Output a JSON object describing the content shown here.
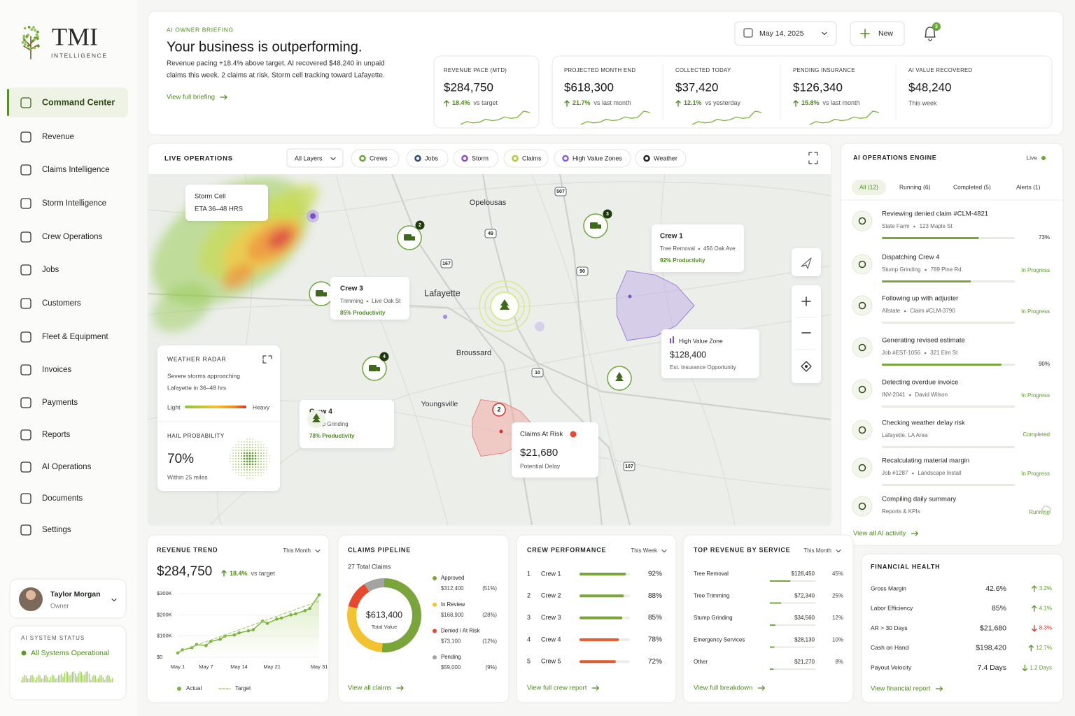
{
  "sidebar": {
    "logo": "TMI",
    "logo_sub": "INTELLIGENCE",
    "nav": [
      "Command Center",
      "Revenue",
      "Claims Intelligence",
      "Storm Intelligence",
      "Crew Operations",
      "Jobs",
      "Customers",
      "Fleet & Equipment",
      "Invoices",
      "Payments",
      "Reports",
      "AI Operations",
      "Documents",
      "Settings"
    ],
    "user": {
      "name": "Taylor Morgan",
      "role": "Owner"
    },
    "status": {
      "title": "AI SYSTEM STATUS",
      "text": "All Systems Operational"
    }
  },
  "briefing": {
    "eyebrow": "AI OWNER BRIEFING",
    "title": "Your business is outperforming.",
    "body": [
      "Revenue pacing +18.4% above target. AI recovered $48,240 in unpaid",
      "claims this week. 2 claims at risk. Storm cell tracking toward Lafayette."
    ],
    "link": "View full briefing"
  },
  "header": {
    "date": "May 14, 2025",
    "new": "New",
    "notifications": "3"
  },
  "kpis": [
    {
      "label": "REVENUE PACE (MTD)",
      "value": "$284,750",
      "change": "18.4%",
      "note": "vs target"
    },
    {
      "label": "PROJECTED MONTH END",
      "value": "$618,300",
      "change": "21.7%",
      "note": "vs last month"
    },
    {
      "label": "COLLECTED TODAY",
      "value": "$37,420",
      "change": "12.1%",
      "note": "vs yesterday"
    },
    {
      "label": "PENDING INSURANCE",
      "value": "$126,340",
      "change": "15.8%",
      "note": "vs last month"
    },
    {
      "label": "AI VALUE RECOVERED",
      "value": "$48,240",
      "note": "This week"
    }
  ],
  "map": {
    "title": "LIVE OPERATIONS",
    "filter": "All Layers",
    "layers": [
      "Crews",
      "Jobs",
      "Storm",
      "Claims",
      "High Value Zones",
      "Weather"
    ],
    "places": [
      "Opelousas",
      "Lafayette",
      "Broussard",
      "Youngsville"
    ],
    "highways": [
      "507",
      "49",
      "167",
      "90",
      "10",
      "107"
    ],
    "storm_cell": {
      "title": "Storm Cell",
      "eta": "ETA 36–48 HRS"
    },
    "crew_cards": [
      {
        "name": "Crew 1",
        "task": "Tree Removal",
        "address": "456 Oak Ave",
        "productivity": "92% Productivity"
      },
      {
        "name": "Crew 3",
        "task": "Trimming",
        "address": "Live Oak St",
        "productivity": "85% Productivity"
      },
      {
        "name": "Crew 4",
        "task": "Stump Grinding",
        "productivity": "78% Productivity"
      }
    ],
    "badges": [
      "2",
      "3",
      "4"
    ],
    "high_value": {
      "title": "High Value Zone",
      "value": "$128,400",
      "note": "Est. Insurance Opportunity"
    },
    "claims_risk": {
      "badge": "2",
      "title": "Claims At Risk",
      "value": "$21,680",
      "note": "Potential Delay"
    }
  },
  "weather": {
    "title": "WEATHER RADAR",
    "text": [
      "Severe storms approaching",
      "Lafayette in 36–48 hrs"
    ],
    "light": "Light",
    "heavy": "Heavy",
    "hail_title": "HAIL PROBABILITY",
    "hail_value": "70%",
    "hail_note": "Within 25 miles"
  },
  "ai_engine": {
    "title": "AI OPERATIONS ENGINE",
    "live": "Live",
    "tabs": [
      "All (12)",
      "Running (6)",
      "Completed (5)",
      "Alerts (1)"
    ],
    "items": [
      {
        "title": "Reviewing denied claim #CLM-4821",
        "sub": [
          "State Farm",
          "123 Maple St"
        ],
        "progress": 73,
        "progress_label": "73%"
      },
      {
        "title": "Dispatching Crew 4",
        "sub": [
          "Stump Grinding",
          "789 Pine Rd"
        ],
        "status": "In Progress",
        "progress": 67
      },
      {
        "title": "Following up with adjuster",
        "sub": [
          "Allstate",
          "Claim #CLM-3790"
        ],
        "status": "In Progress"
      },
      {
        "title": "Generating revised estimate",
        "sub": [
          "Job #EST-1056",
          "321 Elm St"
        ],
        "progress": 90,
        "progress_label": "90%"
      },
      {
        "title": "Detecting overdue invoice",
        "sub": [
          "INV-2041",
          "David Wilson"
        ],
        "status": "In Progress"
      },
      {
        "title": "Checking weather delay risk",
        "sub": [
          "Lafayette, LA Area"
        ],
        "status": "Completed"
      },
      {
        "title": "Recalculating material margin",
        "sub": [
          "Job #1287",
          "Landscape Install"
        ],
        "status": "In Progress"
      },
      {
        "title": "Compiling daily summary",
        "sub": [
          "Reports & KPIs"
        ],
        "status": "Running"
      }
    ],
    "link": "View all AI activity"
  },
  "revenue_trend": {
    "title": "REVENUE TREND",
    "period": "This Month",
    "value": "$284,750",
    "change": "18.4%",
    "note": "vs target",
    "xlim": [
      1,
      31
    ],
    "xticks": [
      {
        "value": 1,
        "label": "May 1"
      },
      {
        "value": 7,
        "label": "May 7"
      },
      {
        "value": 14,
        "label": "May 14"
      },
      {
        "value": 21,
        "label": "May 21"
      },
      {
        "value": 31,
        "label": "May 31"
      }
    ],
    "ylim": [
      0,
      300
    ],
    "yticks": [
      {
        "value": 0,
        "label": "$0"
      },
      {
        "value": 100,
        "label": "$100K"
      },
      {
        "value": 200,
        "label": "$200K"
      },
      {
        "value": 300,
        "label": "$300K"
      }
    ],
    "series": [
      {
        "name": "Actual",
        "color": "#7db33f",
        "x": [
          1,
          2,
          4,
          5,
          7,
          8,
          10,
          11,
          13,
          14,
          16,
          17,
          19,
          20,
          22,
          23,
          25,
          26,
          28,
          29,
          31
        ],
        "values": [
          20,
          35,
          45,
          60,
          55,
          75,
          85,
          100,
          105,
          115,
          125,
          130,
          170,
          160,
          180,
          185,
          200,
          205,
          220,
          230,
          295
        ]
      },
      {
        "name": "Target",
        "color": "#a7d06b",
        "dashed": true,
        "x": [
          1,
          31
        ],
        "values": [
          25,
          265
        ]
      }
    ]
  },
  "claims_pipeline": {
    "title": "CLAIMS PIPELINE",
    "total": "27 Total Claims",
    "center_value": "$613,400",
    "center_label": "Total Value",
    "segments": [
      {
        "name": "Approved",
        "amount": "$312,400",
        "percent": 51,
        "percent_label": "(51%)",
        "color": "#7aa53a"
      },
      {
        "name": "In Review",
        "amount": "$168,900",
        "percent": 28,
        "percent_label": "(28%)",
        "color": "#f2c230"
      },
      {
        "name": "Denied / At Risk",
        "amount": "$73,100",
        "percent": 12,
        "percent_label": "(12%)",
        "color": "#e8492e"
      },
      {
        "name": "Pending",
        "amount": "$59,000",
        "percent": 9,
        "percent_label": "(9%)",
        "color": "#a3a3a0"
      }
    ],
    "link": "View all claims"
  },
  "crew_performance": {
    "title": "CREW PERFORMANCE",
    "period": "This Week",
    "rows": [
      {
        "rank": "1",
        "name": "Crew 1",
        "value": 92,
        "value_label": "92%",
        "color": "#7aa53a"
      },
      {
        "rank": "2",
        "name": "Crew 2",
        "value": 88,
        "value_label": "88%",
        "color": "#7aa53a"
      },
      {
        "rank": "3",
        "name": "Crew 3",
        "value": 85,
        "value_label": "85%",
        "color": "#7aa53a"
      },
      {
        "rank": "4",
        "name": "Crew 4",
        "value": 78,
        "value_label": "78%",
        "color": "#e35a2c"
      },
      {
        "rank": "5",
        "name": "Crew 5",
        "value": 72,
        "value_label": "72%",
        "color": "#e35a2c"
      }
    ],
    "link": "View full crew report"
  },
  "top_revenue": {
    "title": "TOP REVENUE BY SERVICE",
    "period": "This Month",
    "rows": [
      {
        "name": "Tree Removal",
        "amount": "$128,450",
        "share": 45,
        "share_label": "45%"
      },
      {
        "name": "Tree Trimming",
        "amount": "$72,340",
        "share": 25,
        "share_label": "25%"
      },
      {
        "name": "Stump Grinding",
        "amount": "$34,560",
        "share": 12,
        "share_label": "12%"
      },
      {
        "name": "Emergency Services",
        "amount": "$28,130",
        "share": 10,
        "share_label": "10%"
      },
      {
        "name": "Other",
        "amount": "$21,270",
        "share": 8,
        "share_label": "8%"
      }
    ],
    "color": "#7aa53a",
    "link": "View full breakdown"
  },
  "financial_health": {
    "title": "FINANCIAL HEALTH",
    "rows": [
      {
        "name": "Gross Margin",
        "value": "42.6%",
        "change": "3.2%",
        "trend": "up",
        "color": "#5c9a2a"
      },
      {
        "name": "Labor Efficiency",
        "value": "85%",
        "change": "4.1%",
        "trend": "up",
        "color": "#5c9a2a"
      },
      {
        "name": "AR > 30 Days",
        "value": "$21,680",
        "change": "8.3%",
        "trend": "down",
        "color": "#d83a2a"
      },
      {
        "name": "Cash on Hand",
        "value": "$198,420",
        "change": "12.7%",
        "trend": "up",
        "color": "#5c9a2a"
      },
      {
        "name": "Payout Velocity",
        "value": "7.4 Days",
        "change": "1.2 Days",
        "trend": "down",
        "color": "#5c9a2a"
      }
    ],
    "link": "View financial report"
  }
}
